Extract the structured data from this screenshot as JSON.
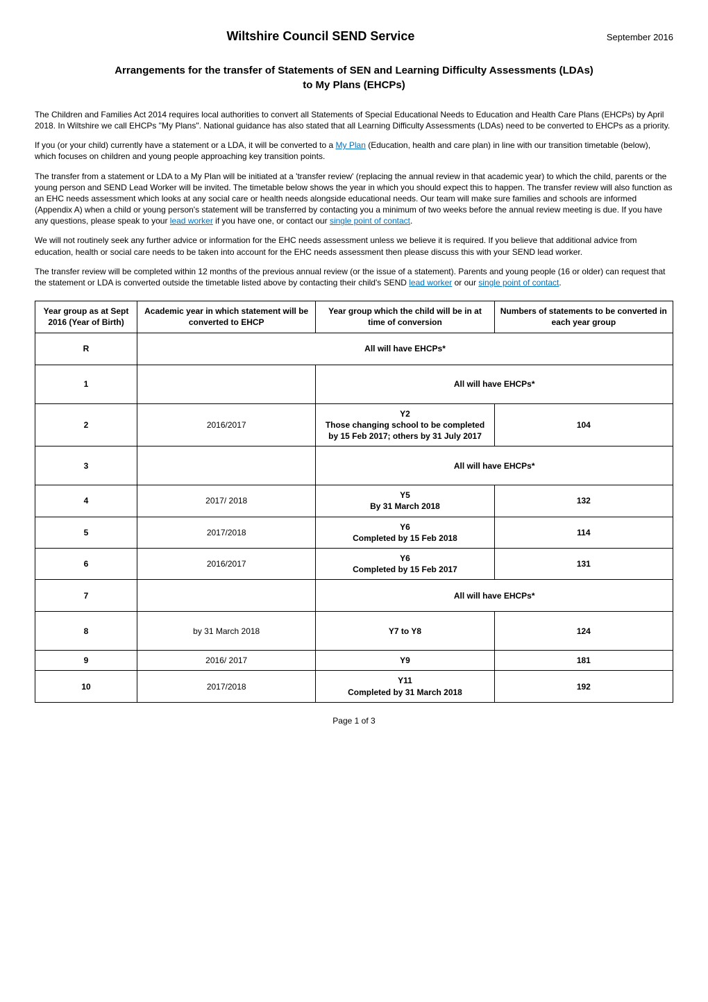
{
  "header": {
    "org": "Wiltshire Council SEND Service",
    "date": "September 2016"
  },
  "title": "Arrangements for the transfer of Statements of SEN and Learning Difficulty Assessments (LDAs) to My Plans (EHCPs)",
  "paragraphs": {
    "p1": "The Children and Families Act 2014 requires local authorities to convert all Statements of Special Educational Needs to Education and Health Care Plans (EHCPs) by April 2018.  In Wiltshire we call EHCPs \"My Plans\". National guidance has also stated that all Learning Difficulty Assessments (LDAs) need to be converted to EHCPs as a priority.",
    "p2_a": "If you (or your child) currently have a statement or a LDA, it will be converted to a ",
    "p2_link": "My Plan",
    "p2_b": " (Education, health and care plan) in line with our transition timetable (below), which focuses on children and young people approaching key transition points.",
    "p3_a": "The transfer from a statement or LDA to a My Plan will be initiated at a 'transfer review' (replacing the annual review in that academic year) to which the child, parents or the young person and SEND Lead Worker will be invited. The timetable below shows the year in which you should expect this to happen.  The transfer review will also function as an EHC needs assessment which looks at any social care or health needs alongside educational needs. Our team will make sure families and schools are informed (Appendix A) when a child or young person's statement will be transferred by contacting you a minimum of two weeks before the annual review meeting is due. If you have any questions, please speak to your ",
    "p3_link1": "lead worker",
    "p3_b": " if you have one, or contact our ",
    "p3_link2": "single point of contact",
    "p3_c": ".",
    "p4": "We will not routinely seek any further advice or information for the EHC needs assessment unless we believe it is required.  If you believe that additional advice from education, health or social care needs to be taken into account for the EHC needs assessment then please discuss this with your SEND lead worker.",
    "p5_a": "The transfer review will be completed within 12 months of the previous annual review (or the issue of a statement). Parents and young people (16 or older) can request that the statement or LDA is converted outside the timetable listed above by contacting their child's SEND  ",
    "p5_link1": "lead worker",
    "p5_b": "  or our ",
    "p5_link2": "single point of contact",
    "p5_c": "."
  },
  "table": {
    "headers": {
      "col1": "Year group as at Sept 2016 (Year of Birth)",
      "col2": "Academic year in which statement will be converted to EHCP",
      "col3": "Year group which the child will be in at time of conversion",
      "col4": "Numbers of statements to be converted in each year group"
    },
    "rows": {
      "rR": {
        "year": "R",
        "span3": "All will have EHCPs*"
      },
      "r1": {
        "year": "1",
        "academic": "",
        "span2": "All will have EHCPs*"
      },
      "r2": {
        "year": "2",
        "academic": "2016/2017",
        "group": "Y2\nThose changing school to be completed by 15 Feb 2017; others by 31 July 2017",
        "count": "104"
      },
      "r3": {
        "year": "3",
        "academic": "",
        "span2": "All will have EHCPs*"
      },
      "r4": {
        "year": "4",
        "academic": "2017/ 2018",
        "group": "Y5\nBy 31 March 2018",
        "count": "132"
      },
      "r5": {
        "year": "5",
        "academic": "2017/2018",
        "group": "Y6\nCompleted by 15 Feb 2018",
        "count": "114"
      },
      "r6": {
        "year": "6",
        "academic": "2016/2017",
        "group": "Y6\nCompleted by 15 Feb 2017",
        "count": "131"
      },
      "r7": {
        "year": "7",
        "academic": "",
        "span2": "All will have EHCPs*"
      },
      "r8": {
        "year": "8",
        "academic": "by 31 March 2018",
        "group": "Y7 to Y8",
        "count": "124"
      },
      "r9": {
        "year": "9",
        "academic": "2016/ 2017",
        "group": "Y9",
        "count": "181"
      },
      "r10": {
        "year": "10",
        "academic": "2017/2018",
        "group": "Y11\nCompleted by 31 March 2018",
        "count": "192"
      }
    }
  },
  "footer": "Page 1 of 3"
}
